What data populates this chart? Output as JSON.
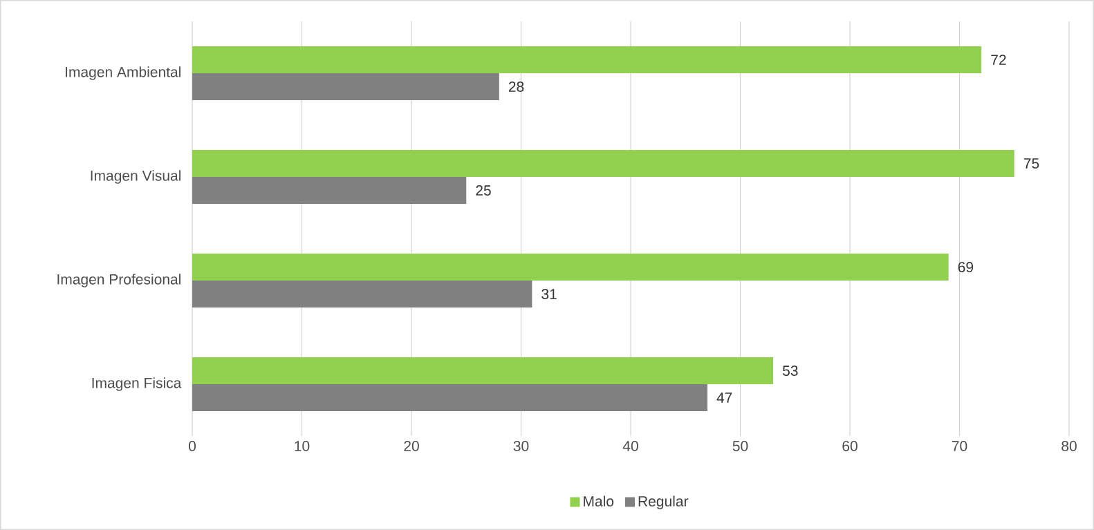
{
  "chart_data": {
    "type": "bar",
    "orientation": "horizontal",
    "categories": [
      "Imagen Ambiental",
      "Imagen Visual",
      "Imagen Profesional",
      "Imagen Fisica"
    ],
    "series": [
      {
        "name": "Malo",
        "color": "#92d050",
        "values": [
          72,
          75,
          69,
          53
        ]
      },
      {
        "name": "Regular",
        "color": "#808080",
        "values": [
          28,
          25,
          31,
          47
        ]
      }
    ],
    "xlim": [
      0,
      80
    ],
    "xticks": [
      0,
      10,
      20,
      30,
      40,
      50,
      60,
      70,
      80
    ],
    "grid": "x",
    "legend": "bottom",
    "data_labels": true
  }
}
